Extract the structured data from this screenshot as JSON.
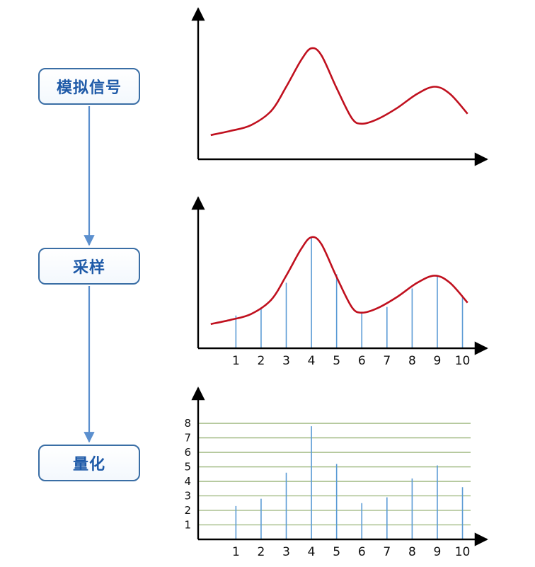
{
  "steps": [
    {
      "label": "模拟信号"
    },
    {
      "label": "采样"
    },
    {
      "label": "量化"
    }
  ],
  "colors": {
    "box_border": "#3a6ea5",
    "box_text": "#1e5aa8",
    "flow_arrow": "#5b8fce",
    "curve": "#c0101e",
    "sample_line": "#5b9bd5",
    "grid_line": "#9bb57a",
    "axis": "#000000"
  },
  "chart_data": [
    {
      "type": "line",
      "curve": [
        [
          0,
          1.7
        ],
        [
          0.8,
          2.0
        ],
        [
          1.6,
          2.4
        ],
        [
          2.4,
          3.4
        ],
        [
          3.0,
          5.1
        ],
        [
          3.6,
          7.0
        ],
        [
          4.0,
          7.8
        ],
        [
          4.4,
          7.3
        ],
        [
          5.0,
          5.0
        ],
        [
          5.6,
          2.9
        ],
        [
          6.0,
          2.5
        ],
        [
          6.6,
          2.8
        ],
        [
          7.4,
          3.6
        ],
        [
          8.2,
          4.6
        ],
        [
          8.9,
          5.1
        ],
        [
          9.5,
          4.6
        ],
        [
          10.2,
          3.2
        ]
      ],
      "xlim": [
        -0.5,
        10.8
      ],
      "ylim": [
        0,
        10.3
      ],
      "grid": false
    },
    {
      "type": "line",
      "curve": [
        [
          0,
          1.7
        ],
        [
          0.8,
          2.0
        ],
        [
          1.6,
          2.4
        ],
        [
          2.4,
          3.4
        ],
        [
          3.0,
          5.1
        ],
        [
          3.6,
          7.0
        ],
        [
          4.0,
          7.8
        ],
        [
          4.4,
          7.3
        ],
        [
          5.0,
          5.0
        ],
        [
          5.6,
          2.9
        ],
        [
          6.0,
          2.5
        ],
        [
          6.6,
          2.8
        ],
        [
          7.4,
          3.6
        ],
        [
          8.2,
          4.6
        ],
        [
          8.9,
          5.1
        ],
        [
          9.5,
          4.6
        ],
        [
          10.2,
          3.2
        ]
      ],
      "samples": {
        "x": [
          1,
          2,
          3,
          4,
          5,
          6,
          7,
          8,
          9,
          10
        ],
        "y": [
          2.3,
          2.8,
          4.6,
          7.8,
          5.2,
          2.5,
          2.9,
          4.2,
          5.1,
          3.6
        ]
      },
      "x_ticks": [
        "1",
        "2",
        "3",
        "4",
        "5",
        "6",
        "7",
        "8",
        "9",
        "10"
      ],
      "xlim": [
        -0.5,
        10.8
      ],
      "ylim": [
        0,
        8.4
      ],
      "grid": false
    },
    {
      "type": "bar",
      "categories": [
        "1",
        "2",
        "3",
        "4",
        "5",
        "6",
        "7",
        "8",
        "9",
        "10"
      ],
      "values": [
        2.3,
        2.8,
        4.6,
        7.8,
        5.2,
        2.5,
        2.9,
        4.2,
        5.1,
        3.6
      ],
      "y_ticks": [
        "1",
        "2",
        "3",
        "4",
        "5",
        "6",
        "7",
        "8"
      ],
      "quantization_levels": [
        1,
        2,
        3,
        4,
        5,
        6,
        7,
        8
      ],
      "xlim": [
        -0.5,
        10.8
      ],
      "ylim": [
        0,
        10.2
      ],
      "grid": true
    }
  ]
}
